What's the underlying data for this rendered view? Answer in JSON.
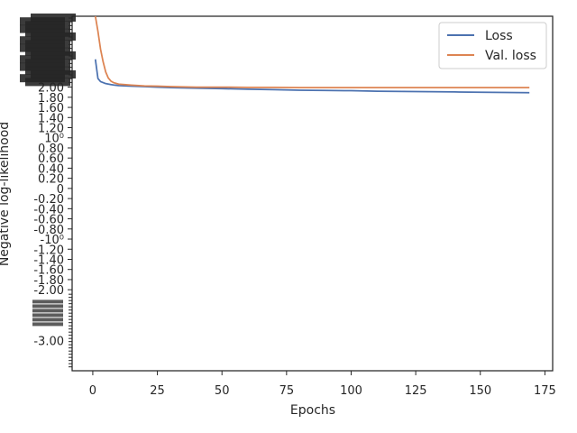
{
  "chart_data": {
    "type": "line",
    "xlabel": "Epochs",
    "ylabel": "Negative log-likelihood",
    "xlim": [
      -8,
      178
    ],
    "xticks": [
      0,
      25,
      50,
      75,
      100,
      125,
      150,
      175
    ],
    "ylim_display": [
      -3.6,
      3.4
    ],
    "yscale": "symlog",
    "grid": false,
    "legend_position": "top-right",
    "visible_ytick_labels": [
      "2.00",
      "1.80",
      "1.60",
      "1.40",
      "1.20",
      "10⁰",
      "0.80",
      "0.60",
      "0.40",
      "0.20",
      "0",
      "-0.20",
      "-0.40",
      "-0.60",
      "-0.80",
      "-10⁰",
      "-1.20",
      "-1.40",
      "-1.60",
      "-1.80",
      "-2.00",
      "-3.00"
    ],
    "series": [
      {
        "name": "Loss",
        "color": "#4c72b0",
        "x": [
          1,
          2,
          3,
          5,
          7,
          10,
          15,
          20,
          25,
          30,
          40,
          50,
          60,
          70,
          80,
          90,
          100,
          110,
          120,
          130,
          140,
          150,
          160,
          169
        ],
        "y": [
          2.55,
          2.17,
          2.11,
          2.07,
          2.05,
          2.03,
          2.02,
          2.01,
          2.0,
          1.99,
          1.98,
          1.97,
          1.96,
          1.95,
          1.94,
          1.935,
          1.93,
          1.92,
          1.915,
          1.91,
          1.905,
          1.9,
          1.895,
          1.89
        ]
      },
      {
        "name": "Val. loss",
        "color": "#dd8452",
        "x": [
          1,
          2,
          3,
          4,
          5,
          6,
          7,
          8,
          10,
          15,
          20,
          25,
          30,
          40,
          50,
          60,
          70,
          80,
          90,
          100,
          110,
          120,
          130,
          140,
          150,
          160,
          169
        ],
        "y": [
          3.4,
          3.1,
          2.75,
          2.5,
          2.3,
          2.18,
          2.12,
          2.09,
          2.06,
          2.04,
          2.025,
          2.02,
          2.01,
          2.0,
          2.0,
          1.995,
          1.995,
          1.99,
          1.99,
          1.99,
          1.99,
          1.99,
          1.99,
          1.99,
          1.99,
          1.99,
          1.99
        ]
      }
    ]
  }
}
